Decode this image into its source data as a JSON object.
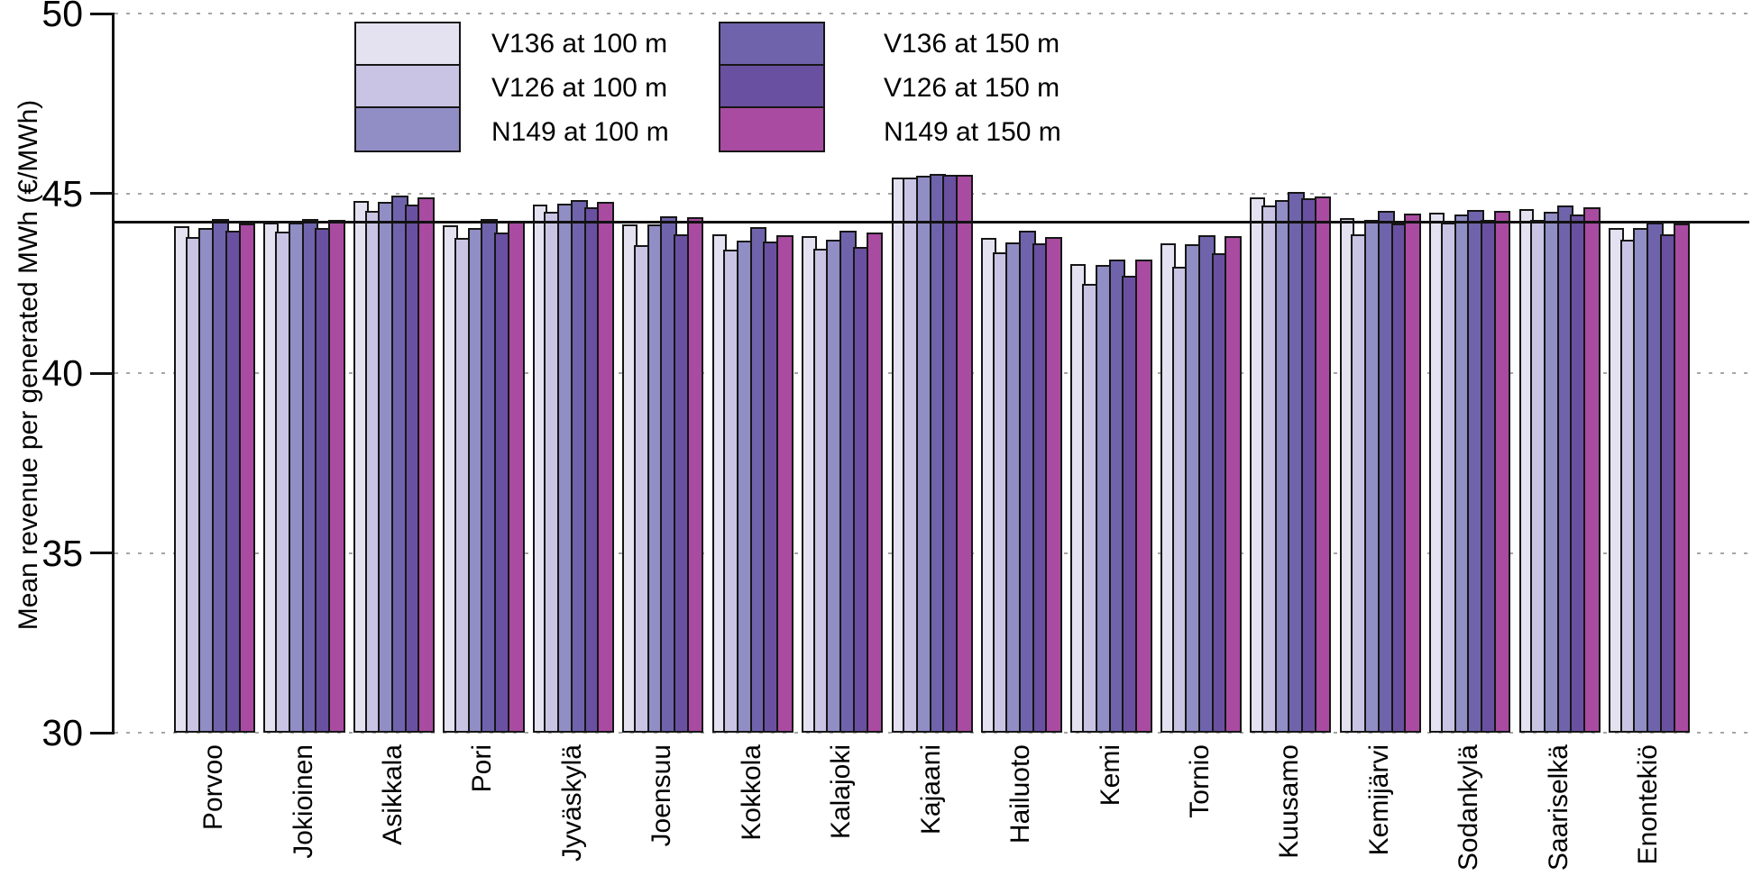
{
  "chart_data": {
    "type": "bar",
    "title": "",
    "ylabel": "Mean revenue per generated MWh (€/MWh)",
    "xlabel": "",
    "ylim": [
      30,
      50
    ],
    "yticks": [
      30,
      35,
      40,
      45,
      50
    ],
    "grid": "horizontal dotted gridlines at each y tick",
    "reference_line": 44.2,
    "legend_position": "top-left inside plot, two columns of stacked swatches",
    "categories": [
      "Porvoo",
      "Jokioinen",
      "Asikkala",
      "Pori",
      "Jyväskylä",
      "Joensuu",
      "Kokkola",
      "Kalajoki",
      "Kajaani",
      "Hailuoto",
      "Kemi",
      "Tornio",
      "Kuusamo",
      "Kemijärvi",
      "Sodankylä",
      "Saariselkä",
      "Enontekiö"
    ],
    "series": [
      {
        "name": "V136 at 100 m",
        "color": "#e4e1f1",
        "values": [
          44.08,
          44.18,
          44.79,
          44.1,
          44.69,
          44.14,
          43.85,
          43.81,
          45.45,
          43.76,
          43.04,
          43.61,
          44.88,
          44.31,
          44.47,
          44.57,
          44.03
        ]
      },
      {
        "name": "V126 at 100 m",
        "color": "#c9c4e4",
        "values": [
          43.79,
          43.93,
          44.5,
          43.77,
          44.48,
          43.57,
          43.43,
          43.45,
          45.43,
          43.35,
          42.47,
          42.95,
          44.66,
          43.86,
          44.18,
          44.25,
          43.7
        ]
      },
      {
        "name": "N149 at 100 m",
        "color": "#918dc5",
        "values": [
          44.04,
          44.19,
          44.75,
          44.03,
          44.71,
          44.14,
          43.68,
          43.72,
          45.48,
          43.64,
          43.0,
          43.58,
          44.82,
          44.27,
          44.41,
          44.49,
          44.03
        ]
      },
      {
        "name": "V136 at 150 m",
        "color": "#6f64ac",
        "values": [
          44.28,
          44.29,
          44.94,
          44.28,
          44.82,
          44.35,
          44.07,
          43.97,
          45.55,
          43.97,
          43.17,
          43.84,
          45.03,
          44.5,
          44.54,
          44.65,
          44.19
        ]
      },
      {
        "name": "V126 at 150 m",
        "color": "#6a50a0",
        "values": [
          43.97,
          44.04,
          44.69,
          43.92,
          44.6,
          43.86,
          43.66,
          43.52,
          45.51,
          43.6,
          42.71,
          43.33,
          44.86,
          44.15,
          44.27,
          44.4,
          43.87
        ]
      },
      {
        "name": "N149 at 150 m",
        "color": "#a94ba1",
        "values": [
          44.16,
          44.27,
          44.89,
          44.21,
          44.77,
          44.33,
          43.83,
          43.92,
          45.51,
          43.78,
          43.16,
          43.82,
          44.92,
          44.43,
          44.52,
          44.61,
          44.16
        ]
      }
    ]
  }
}
